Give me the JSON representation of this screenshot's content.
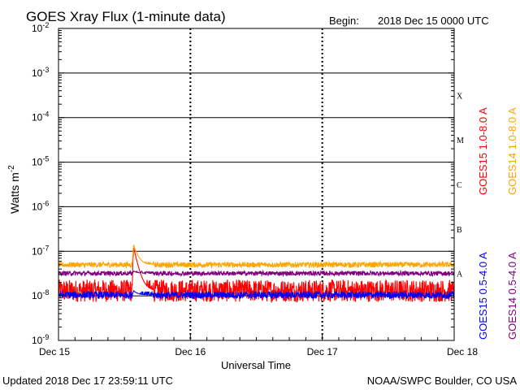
{
  "header": {
    "title": "GOES Xray Flux (1-minute data)",
    "begin_label": "Begin:",
    "begin_value": "2018 Dec 15 0000 UTC"
  },
  "footer": {
    "updated": "Updated 2018 Dec 17 23:59:11 UTC",
    "credit": "NOAA/SWPC Boulder, CO USA"
  },
  "chart_data": {
    "type": "line",
    "title": "GOES Xray Flux (1-minute data)",
    "xlabel": "Universal Time",
    "ylabel_base": "Watts m",
    "ylabel_exp": "-2",
    "y_scale": "log",
    "ylim": [
      1e-09,
      0.01
    ],
    "y_ticks": [
      {
        "base": "10",
        "exp": "-2"
      },
      {
        "base": "10",
        "exp": "-3"
      },
      {
        "base": "10",
        "exp": "-4"
      },
      {
        "base": "10",
        "exp": "-5"
      },
      {
        "base": "10",
        "exp": "-6"
      },
      {
        "base": "10",
        "exp": "-7"
      },
      {
        "base": "10",
        "exp": "-8"
      },
      {
        "base": "10",
        "exp": "-9"
      }
    ],
    "x_ticks": [
      "Dec 15",
      "Dec 16",
      "Dec 17",
      "Dec 18"
    ],
    "xlim_days": [
      0,
      3
    ],
    "flare_classes": [
      "X",
      "M",
      "C",
      "B",
      "A"
    ],
    "grid": true,
    "legend_position": "right",
    "series": [
      {
        "name": "GOES15 1.0-8.0 A",
        "color": "#ff0000",
        "baseline": 1.3e-08,
        "noise": 0.25,
        "event": {
          "day": 0.57,
          "peak": 1.2e-07
        }
      },
      {
        "name": "GOES14 1.0-8.0 A",
        "color": "#ffa500",
        "baseline": 5e-08,
        "noise": 0.06,
        "event": {
          "day": 0.57,
          "peak": 1.4e-07
        }
      },
      {
        "name": "GOES15 0.5-4.0 A",
        "color": "#0000ff",
        "baseline": 1.05e-08,
        "noise": 0.08,
        "event": {
          "day": 0.57,
          "peak": 1.3e-08
        }
      },
      {
        "name": "GOES14 0.5-4.0 A",
        "color": "#800080",
        "baseline": 3.2e-08,
        "noise": 0.05,
        "event": {
          "day": 0.57,
          "peak": 3.6e-08
        }
      }
    ]
  }
}
